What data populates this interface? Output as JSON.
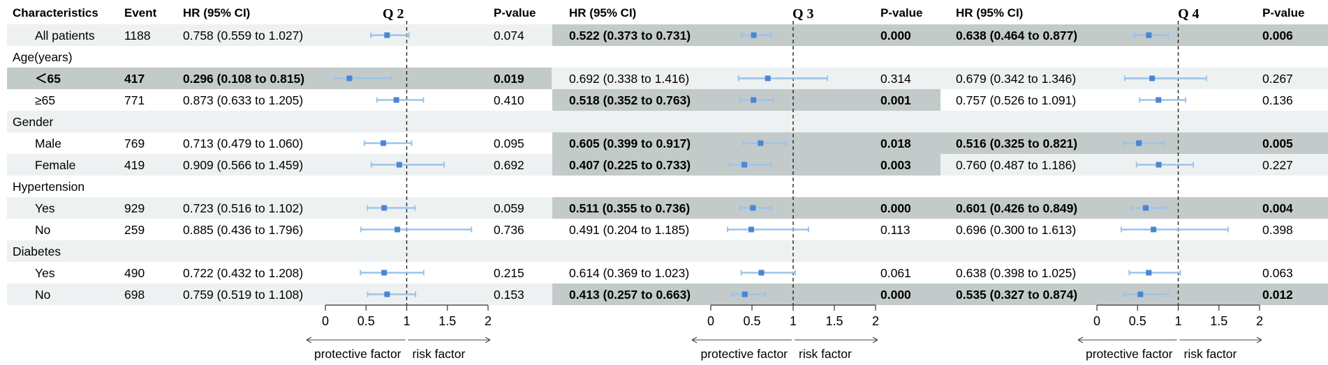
{
  "chart_data": {
    "type": "forest",
    "headers": {
      "characteristics": "Characteristics",
      "event": "Event",
      "hr": "HR (95% CI)",
      "p": "P-value"
    },
    "panels": [
      {
        "title": "Q 2"
      },
      {
        "title": "Q 3"
      },
      {
        "title": "Q 4"
      }
    ],
    "axis": {
      "ticks": [
        0,
        0.5,
        1,
        1.5,
        2
      ],
      "tick_labels": [
        "0",
        "0.5",
        "1",
        "1.5",
        "2"
      ],
      "range": [
        0,
        2
      ],
      "reference": 1,
      "left_label": "protective factor",
      "right_label": "risk factor"
    },
    "colors": {
      "band_light": "#eef1f1",
      "band_dark": "#c3caca",
      "point": "#4a86d4",
      "ci": "#9cc3ea",
      "axis": "#333333"
    },
    "rows": [
      {
        "label": "All patients",
        "indent": true,
        "band": "light",
        "event": "1188",
        "q": [
          {
            "hr": 0.758,
            "lo": 0.559,
            "hi": 1.027,
            "text": "0.758 (0.559 to 1.027)",
            "p": "0.074",
            "sig": false
          },
          {
            "hr": 0.522,
            "lo": 0.373,
            "hi": 0.731,
            "text": "0.522 (0.373 to 0.731)",
            "p": "0.000",
            "sig": true
          },
          {
            "hr": 0.638,
            "lo": 0.464,
            "hi": 0.877,
            "text": "0.638 (0.464 to 0.877)",
            "p": "0.006",
            "sig": true
          }
        ]
      },
      {
        "label": "Age(years)",
        "indent": false,
        "band": "white",
        "event": "",
        "q": null
      },
      {
        "label": "＜65",
        "indent": true,
        "band": "light",
        "event": "417",
        "q": [
          {
            "hr": 0.296,
            "lo": 0.108,
            "hi": 0.815,
            "text": "0.296 (0.108 to 0.815)",
            "p": "0.019",
            "sig": true
          },
          {
            "hr": 0.692,
            "lo": 0.338,
            "hi": 1.416,
            "text": "0.692 (0.338 to 1.416)",
            "p": "0.314",
            "sig": false
          },
          {
            "hr": 0.679,
            "lo": 0.342,
            "hi": 1.346,
            "text": "0.679 (0.342 to 1.346)",
            "p": "0.267",
            "sig": false
          }
        ]
      },
      {
        "label": "≥65",
        "indent": true,
        "band": "white",
        "event": "771",
        "q": [
          {
            "hr": 0.873,
            "lo": 0.633,
            "hi": 1.205,
            "text": "0.873 (0.633 to 1.205)",
            "p": "0.410",
            "sig": false
          },
          {
            "hr": 0.518,
            "lo": 0.352,
            "hi": 0.763,
            "text": "0.518 (0.352 to 0.763)",
            "p": "0.001",
            "sig": true
          },
          {
            "hr": 0.757,
            "lo": 0.526,
            "hi": 1.091,
            "text": "0.757 (0.526 to 1.091)",
            "p": "0.136",
            "sig": false
          }
        ]
      },
      {
        "label": "Gender",
        "indent": false,
        "band": "light",
        "event": "",
        "q": null
      },
      {
        "label": "Male",
        "indent": true,
        "band": "white",
        "event": "769",
        "q": [
          {
            "hr": 0.713,
            "lo": 0.479,
            "hi": 1.06,
            "text": "0.713 (0.479 to 1.060)",
            "p": "0.095",
            "sig": false
          },
          {
            "hr": 0.605,
            "lo": 0.399,
            "hi": 0.917,
            "text": "0.605 (0.399 to 0.917)",
            "p": "0.018",
            "sig": true
          },
          {
            "hr": 0.516,
            "lo": 0.325,
            "hi": 0.821,
            "text": "0.516 (0.325 to 0.821)",
            "p": "0.005",
            "sig": true
          }
        ]
      },
      {
        "label": "Female",
        "indent": true,
        "band": "light",
        "event": "419",
        "q": [
          {
            "hr": 0.909,
            "lo": 0.566,
            "hi": 1.459,
            "text": "0.909 (0.566 to 1.459)",
            "p": "0.692",
            "sig": false
          },
          {
            "hr": 0.407,
            "lo": 0.225,
            "hi": 0.733,
            "text": "0.407 (0.225 to 0.733)",
            "p": "0.003",
            "sig": true
          },
          {
            "hr": 0.76,
            "lo": 0.487,
            "hi": 1.186,
            "text": "0.760 (0.487 to 1.186)",
            "p": "0.227",
            "sig": false
          }
        ]
      },
      {
        "label": "Hypertension",
        "indent": false,
        "band": "white",
        "event": "",
        "q": null
      },
      {
        "label": "Yes",
        "indent": true,
        "band": "light",
        "event": "929",
        "q": [
          {
            "hr": 0.723,
            "lo": 0.516,
            "hi": 1.102,
            "text": "0.723 (0.516 to 1.102)",
            "p": "0.059",
            "sig": false
          },
          {
            "hr": 0.511,
            "lo": 0.355,
            "hi": 0.736,
            "text": "0.511 (0.355 to 0.736)",
            "p": "0.000",
            "sig": true
          },
          {
            "hr": 0.601,
            "lo": 0.426,
            "hi": 0.849,
            "text": "0.601 (0.426 to 0.849)",
            "p": "0.004",
            "sig": true
          }
        ]
      },
      {
        "label": "No",
        "indent": true,
        "band": "white",
        "event": "259",
        "q": [
          {
            "hr": 0.885,
            "lo": 0.436,
            "hi": 1.796,
            "text": "0.885 (0.436 to 1.796)",
            "p": "0.736",
            "sig": false
          },
          {
            "hr": 0.491,
            "lo": 0.204,
            "hi": 1.185,
            "text": "0.491 (0.204 to 1.185)",
            "p": "0.113",
            "sig": false
          },
          {
            "hr": 0.696,
            "lo": 0.3,
            "hi": 1.613,
            "text": "0.696 (0.300 to 1.613)",
            "p": "0.398",
            "sig": false
          }
        ]
      },
      {
        "label": "Diabetes",
        "indent": false,
        "band": "light",
        "event": "",
        "q": null
      },
      {
        "label": "Yes",
        "indent": true,
        "band": "white",
        "event": "490",
        "q": [
          {
            "hr": 0.722,
            "lo": 0.432,
            "hi": 1.208,
            "text": "0.722 (0.432 to 1.208)",
            "p": "0.215",
            "sig": false
          },
          {
            "hr": 0.614,
            "lo": 0.369,
            "hi": 1.023,
            "text": "0.614 (0.369 to 1.023)",
            "p": "0.061",
            "sig": false
          },
          {
            "hr": 0.638,
            "lo": 0.398,
            "hi": 1.025,
            "text": "0.638 (0.398 to 1.025)",
            "p": "0.063",
            "sig": false
          }
        ]
      },
      {
        "label": "No",
        "indent": true,
        "band": "light",
        "event": "698",
        "q": [
          {
            "hr": 0.759,
            "lo": 0.519,
            "hi": 1.108,
            "text": "0.759 (0.519 to 1.108)",
            "p": "0.153",
            "sig": false
          },
          {
            "hr": 0.413,
            "lo": 0.257,
            "hi": 0.663,
            "text": "0.413 (0.257 to 0.663)",
            "p": "0.000",
            "sig": true
          },
          {
            "hr": 0.535,
            "lo": 0.327,
            "hi": 0.874,
            "text": "0.535 (0.327 to 0.874)",
            "p": "0.012",
            "sig": true
          }
        ]
      }
    ]
  }
}
